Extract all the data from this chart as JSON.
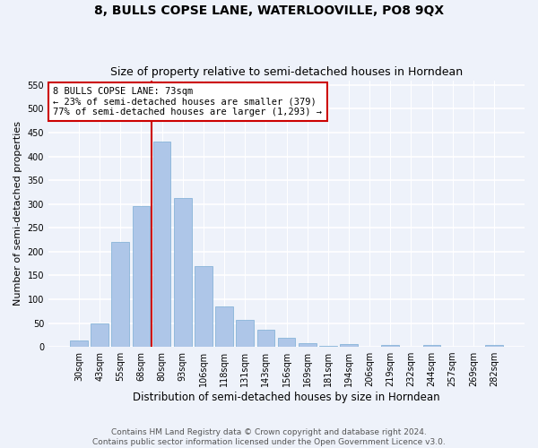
{
  "title": "8, BULLS COPSE LANE, WATERLOOVILLE, PO8 9QX",
  "subtitle": "Size of property relative to semi-detached houses in Horndean",
  "xlabel": "Distribution of semi-detached houses by size in Horndean",
  "ylabel": "Number of semi-detached properties",
  "categories": [
    "30sqm",
    "43sqm",
    "55sqm",
    "68sqm",
    "80sqm",
    "93sqm",
    "106sqm",
    "118sqm",
    "131sqm",
    "143sqm",
    "156sqm",
    "169sqm",
    "181sqm",
    "194sqm",
    "206sqm",
    "219sqm",
    "232sqm",
    "244sqm",
    "257sqm",
    "269sqm",
    "282sqm"
  ],
  "values": [
    13,
    49,
    221,
    295,
    432,
    312,
    170,
    85,
    57,
    35,
    19,
    7,
    2,
    5,
    0,
    4,
    0,
    4,
    0,
    0,
    4
  ],
  "bar_color": "#aec6e8",
  "bar_edgecolor": "#7aadd4",
  "background_color": "#eef2fa",
  "grid_color": "#ffffff",
  "property_line_x": 3.5,
  "property_sqm": 73,
  "property_label": "8 BULLS COPSE LANE: 73sqm",
  "smaller_pct": 23,
  "smaller_n": 379,
  "larger_pct": 77,
  "larger_n": 1293,
  "annotation_box_color": "#ffffff",
  "annotation_box_edgecolor": "#cc0000",
  "vline_color": "#cc0000",
  "ylim": [
    0,
    560
  ],
  "yticks": [
    0,
    50,
    100,
    150,
    200,
    250,
    300,
    350,
    400,
    450,
    500,
    550
  ],
  "footer1": "Contains HM Land Registry data © Crown copyright and database right 2024.",
  "footer2": "Contains public sector information licensed under the Open Government Licence v3.0.",
  "title_fontsize": 10,
  "subtitle_fontsize": 9,
  "xlabel_fontsize": 8.5,
  "ylabel_fontsize": 8,
  "tick_fontsize": 7,
  "footer_fontsize": 6.5,
  "annot_fontsize": 7.5
}
